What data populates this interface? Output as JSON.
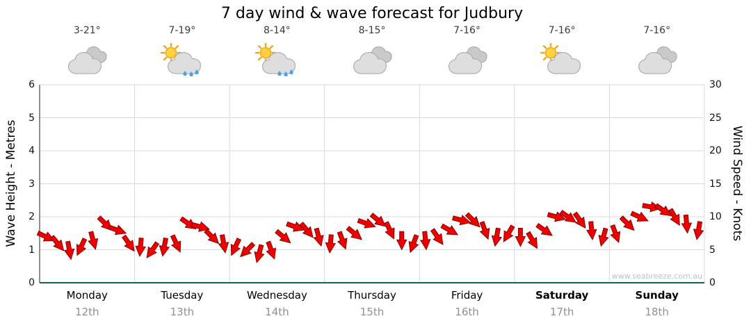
{
  "title": "7 day wind & wave forecast for Judbury",
  "watermark": "www.seabreeze.com.au",
  "chart_data": {
    "type": "wind-arrow-series",
    "title": "7 day wind & wave forecast for Judbury",
    "grid": true,
    "x_axis": {
      "days": [
        {
          "name": "Monday",
          "date": "12th",
          "temp": "3-21°",
          "icon": "cloudy-icon",
          "bold": false
        },
        {
          "name": "Tuesday",
          "date": "13th",
          "temp": "7-19°",
          "icon": "sun-cloud-rain-icon",
          "bold": false
        },
        {
          "name": "Wednesday",
          "date": "14th",
          "temp": "8-14°",
          "icon": "sun-cloud-rain-icon",
          "bold": false
        },
        {
          "name": "Thursday",
          "date": "15th",
          "temp": "8-15°",
          "icon": "cloudy-icon",
          "bold": false
        },
        {
          "name": "Friday",
          "date": "16th",
          "temp": "7-16°",
          "icon": "cloudy-icon",
          "bold": false
        },
        {
          "name": "Saturday",
          "date": "17th",
          "temp": "7-16°",
          "icon": "sun-cloud-icon",
          "bold": true
        },
        {
          "name": "Sunday",
          "date": "18th",
          "temp": "7-16°",
          "icon": "cloudy-icon",
          "bold": true
        }
      ]
    },
    "y_left": {
      "label": "Wave Height - Metres",
      "min": 0,
      "max": 6,
      "ticks": [
        0,
        1,
        2,
        3,
        4,
        5,
        6
      ]
    },
    "y_right": {
      "label": "Wind Speed - Knots",
      "min": 0,
      "max": 30,
      "ticks": [
        0,
        5,
        10,
        15,
        20,
        25,
        30
      ]
    },
    "series": [
      {
        "name": "Wind Speed",
        "unit": "knots",
        "values": [
          7,
          6,
          5,
          5.5,
          6.5,
          9,
          8,
          6,
          5.5,
          5,
          5.5,
          6,
          9,
          8.5,
          7,
          6,
          5.5,
          5,
          4.5,
          5,
          7,
          8.5,
          8,
          7,
          6,
          6.5,
          7.5,
          9,
          9.5,
          8,
          6.5,
          6,
          6.5,
          7,
          8,
          9.5,
          9.5,
          8,
          7,
          7.5,
          7,
          6.5,
          8,
          10,
          10,
          9.5,
          8,
          7,
          7.5,
          9,
          10,
          11.5,
          11,
          10,
          9,
          8
        ],
        "directions_deg": [
          25,
          50,
          80,
          115,
          75,
          45,
          20,
          55,
          95,
          125,
          100,
          65,
          35,
          15,
          45,
          80,
          115,
          135,
          105,
          70,
          40,
          20,
          50,
          75,
          95,
          70,
          40,
          20,
          40,
          65,
          90,
          110,
          85,
          55,
          30,
          15,
          45,
          70,
          100,
          120,
          90,
          60,
          35,
          15,
          35,
          55,
          85,
          105,
          70,
          45,
          25,
          10,
          35,
          60,
          85,
          100
        ]
      }
    ],
    "colors": {
      "arrow_fill": "#ee0000",
      "arrow_outline": "#8b0000",
      "grid": "#d9d9d9",
      "axis": "#115e5e",
      "left_axis": "#222222"
    }
  }
}
